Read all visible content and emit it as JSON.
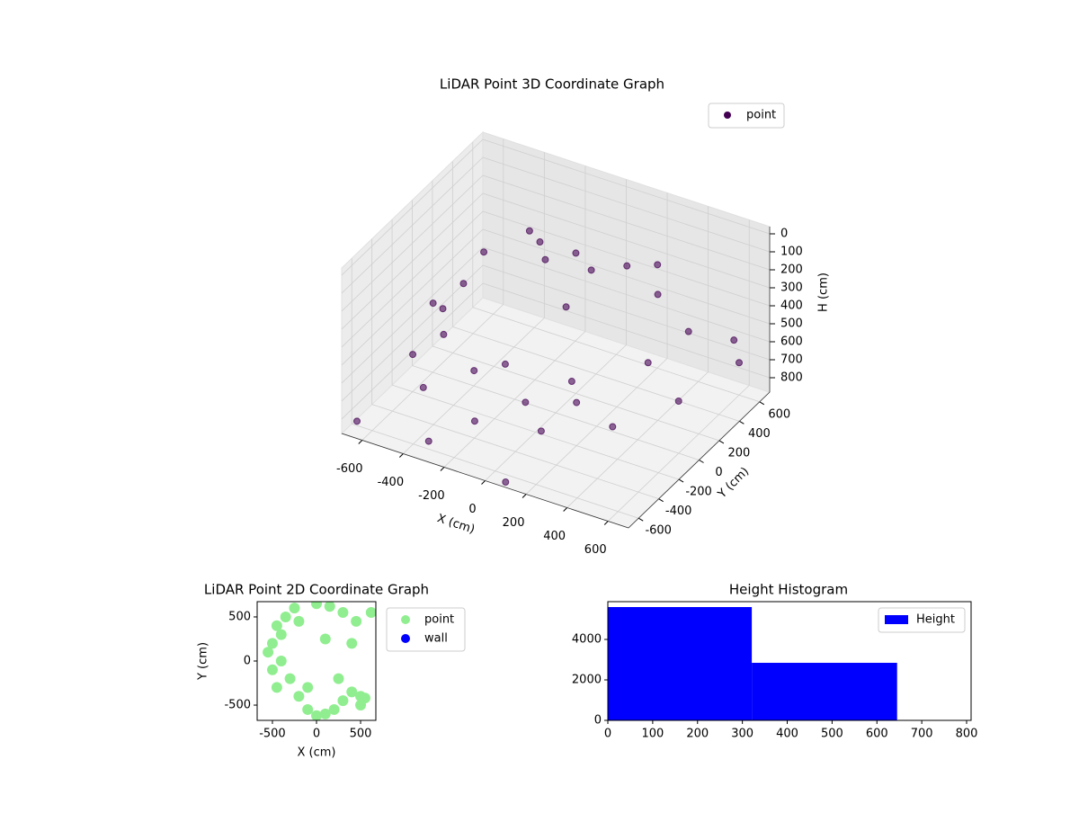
{
  "chart_data": [
    {
      "type": "scatter3d",
      "title": "LiDAR Point 3D Coordinate Graph",
      "xlabel": "X (cm)",
      "ylabel": "Y (cm)",
      "zlabel": "H (cm)",
      "xlim": [
        -700,
        700
      ],
      "ylim": [
        -700,
        700
      ],
      "zlim": [
        880,
        -40
      ],
      "xticks": [
        -600,
        -400,
        -200,
        0,
        200,
        400,
        600
      ],
      "yticks": [
        -600,
        -400,
        -200,
        0,
        200,
        400,
        600
      ],
      "zticks": [
        0,
        100,
        200,
        300,
        400,
        500,
        600,
        700,
        800
      ],
      "grid": true,
      "legend": "upper right",
      "series": [
        {
          "name": "point",
          "color": "#440154",
          "x": [
            -100,
            0,
            100,
            200,
            -200,
            300,
            -300,
            400,
            -400,
            100,
            -500,
            -450,
            -350,
            0,
            300,
            500,
            550,
            -550,
            -400,
            -100,
            200,
            450,
            600,
            -600,
            -300,
            0,
            200,
            -650,
            -300,
            600,
            100,
            550
          ],
          "y": [
            100,
            200,
            150,
            300,
            250,
            400,
            350,
            200,
            100,
            -100,
            -200,
            0,
            -400,
            -500,
            -450,
            -100,
            200,
            -300,
            -500,
            -600,
            -550,
            -350,
            0,
            100,
            -200,
            -300,
            -200,
            -650,
            -650,
            600,
            -700,
            650
          ],
          "z": [
            120,
            100,
            130,
            150,
            140,
            160,
            170,
            180,
            190,
            200,
            350,
            330,
            360,
            340,
            350,
            360,
            330,
            600,
            620,
            640,
            610,
            600,
            590,
            580,
            650,
            660,
            640,
            820,
            800,
            700,
            850,
            620
          ]
        }
      ]
    },
    {
      "type": "scatter",
      "title": "LiDAR Point 2D Coordinate Graph",
      "xlabel": "X (cm)",
      "ylabel": "Y (cm)",
      "xlim": [
        -673,
        673
      ],
      "ylim": [
        -673,
        673
      ],
      "xticks": [
        -500,
        0,
        500
      ],
      "yticks": [
        -500,
        0,
        500
      ],
      "legend": "outside right",
      "series": [
        {
          "name": "point",
          "color": "#90ee90",
          "x": [
            -450,
            -500,
            -400,
            -300,
            -200,
            -100,
            0,
            100,
            200,
            300,
            400,
            500,
            -550,
            -500,
            -450,
            -350,
            -250,
            0,
            150,
            300,
            450,
            500,
            -400,
            -200,
            550,
            620,
            -100,
            100,
            250,
            400
          ],
          "y": [
            400,
            200,
            0,
            -200,
            -400,
            -550,
            -620,
            -600,
            -550,
            -450,
            -350,
            -500,
            100,
            -100,
            -300,
            500,
            600,
            650,
            620,
            550,
            450,
            -400,
            300,
            450,
            -420,
            550,
            -300,
            250,
            -200,
            200
          ]
        },
        {
          "name": "wall",
          "color": "#0000ff",
          "x": [],
          "y": []
        }
      ]
    },
    {
      "type": "histogram",
      "title": "Height Histogram",
      "xlim": [
        0,
        810
      ],
      "ylim": [
        0,
        5867
      ],
      "xticks": [
        0,
        100,
        200,
        300,
        400,
        500,
        600,
        700,
        800
      ],
      "yticks": [
        0,
        2000,
        4000
      ],
      "legend": "upper right",
      "series": [
        {
          "name": "Height",
          "color": "#0000ff",
          "bins": [
            0,
            321,
            645
          ],
          "values": [
            5600,
            2844
          ]
        }
      ]
    }
  ]
}
